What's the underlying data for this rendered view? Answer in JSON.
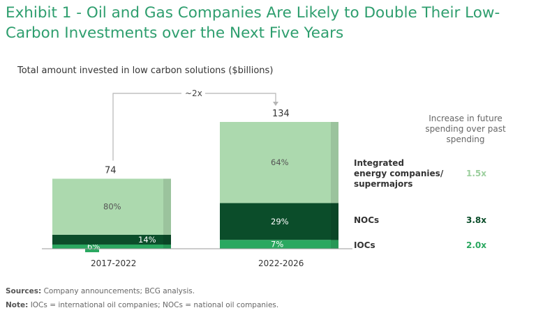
{
  "title": "Exhibit 1 - Oil and Gas Companies Are Likely to Double Their Low-Carbon Investments over the Next Five Years",
  "subtitle": "Total amount invested in low carbon solutions ($billions)",
  "multiplier_label": "~2x",
  "right_header": [
    "Increase in future",
    "spending over past",
    "spending"
  ],
  "footer": {
    "sources_label": "Sources:",
    "sources_text": "Company announcements; BCG analysis.",
    "note_label": "Note:",
    "note_text": "IOCs = international oil companies; NOCs = national oil companies."
  },
  "chart_data": {
    "type": "bar",
    "stacked": true,
    "categories": [
      "2017-2022",
      "2022-2026"
    ],
    "totals": [
      74,
      134
    ],
    "series": [
      {
        "name": "IOCs",
        "share_labels": [
          "6%",
          "7%"
        ],
        "shares": [
          6,
          7
        ],
        "color": "#2aa860",
        "label_color": "#ffffff",
        "multiplier": "2.0x",
        "multiplier_color": "#2aa860"
      },
      {
        "name": "NOCs",
        "share_labels": [
          "14%",
          "29%"
        ],
        "shares": [
          14,
          29
        ],
        "color": "#0b4d2a",
        "label_color": "#ffffff",
        "multiplier": "3.8x",
        "multiplier_color": "#0b4d2a"
      },
      {
        "name": "Integrated energy companies/ supermajors",
        "name_lines": [
          "Integrated",
          "energy companies/",
          "supermajors"
        ],
        "share_labels": [
          "80%",
          "64%"
        ],
        "shares": [
          80,
          64
        ],
        "color": "#acd9ae",
        "label_color": "#555555",
        "multiplier": "1.5x",
        "multiplier_color": "#9ccf9e"
      }
    ],
    "ylim": [
      0,
      134
    ]
  }
}
